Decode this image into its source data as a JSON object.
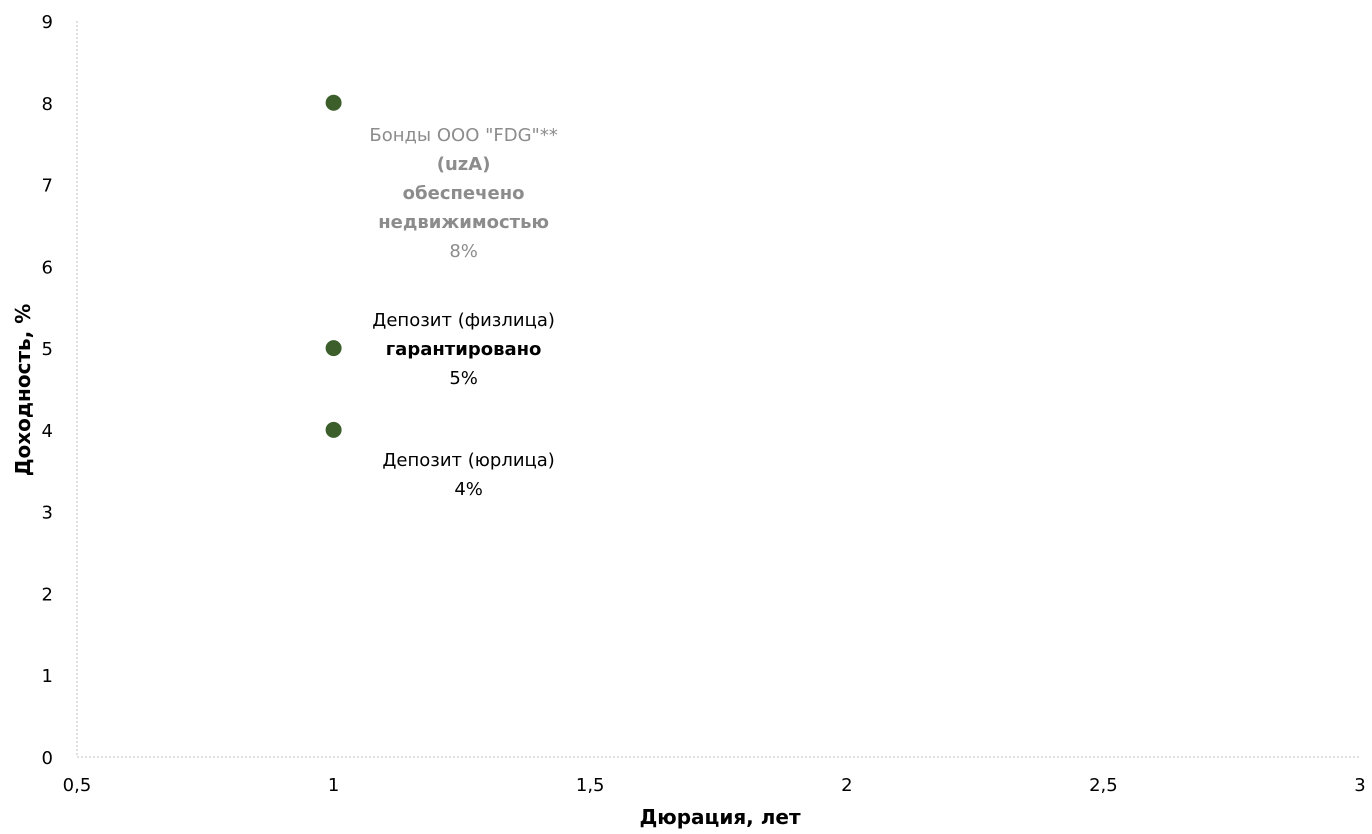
{
  "chart_data": {
    "type": "scatter",
    "xlabel": "Дюрация, лет",
    "ylabel": "Доходность, %",
    "xlim": [
      0.5,
      3
    ],
    "ylim": [
      0,
      9
    ],
    "xticks": [
      0.5,
      1,
      1.5,
      2,
      2.5,
      3
    ],
    "xtick_labels": [
      "0,5",
      "1",
      "1,5",
      "2",
      "2,5",
      "3"
    ],
    "yticks": [
      0,
      1,
      2,
      3,
      4,
      5,
      6,
      7,
      8,
      9
    ],
    "ytick_labels": [
      "0",
      "1",
      "2",
      "3",
      "4",
      "5",
      "6",
      "7",
      "8",
      "9"
    ],
    "grid": false,
    "marker_color": "#3b5e2b",
    "points": [
      {
        "x": 1,
        "y": 8,
        "label_color": "#8c8c8c",
        "label_placement": "below",
        "label_lines": [
          {
            "text": "Бонды ООО \"FDG\"**",
            "bold": false
          },
          {
            "text": "(uzA)",
            "bold": true
          },
          {
            "text": "обеспечено",
            "bold": true
          },
          {
            "text": "недвижимостью",
            "bold": true
          },
          {
            "text": "8%",
            "bold": false
          }
        ]
      },
      {
        "x": 1,
        "y": 5,
        "label_color": "#000000",
        "label_placement": "right",
        "label_lines": [
          {
            "text": "Депозит (физлица)",
            "bold": false
          },
          {
            "text": "гарантировано",
            "bold": true
          },
          {
            "text": "5%",
            "bold": false
          }
        ]
      },
      {
        "x": 1,
        "y": 4,
        "label_color": "#000000",
        "label_placement": "below-right",
        "label_lines": [
          {
            "text": "Депозит (юрлица)",
            "bold": false
          },
          {
            "text": "4%",
            "bold": false
          }
        ]
      }
    ]
  }
}
